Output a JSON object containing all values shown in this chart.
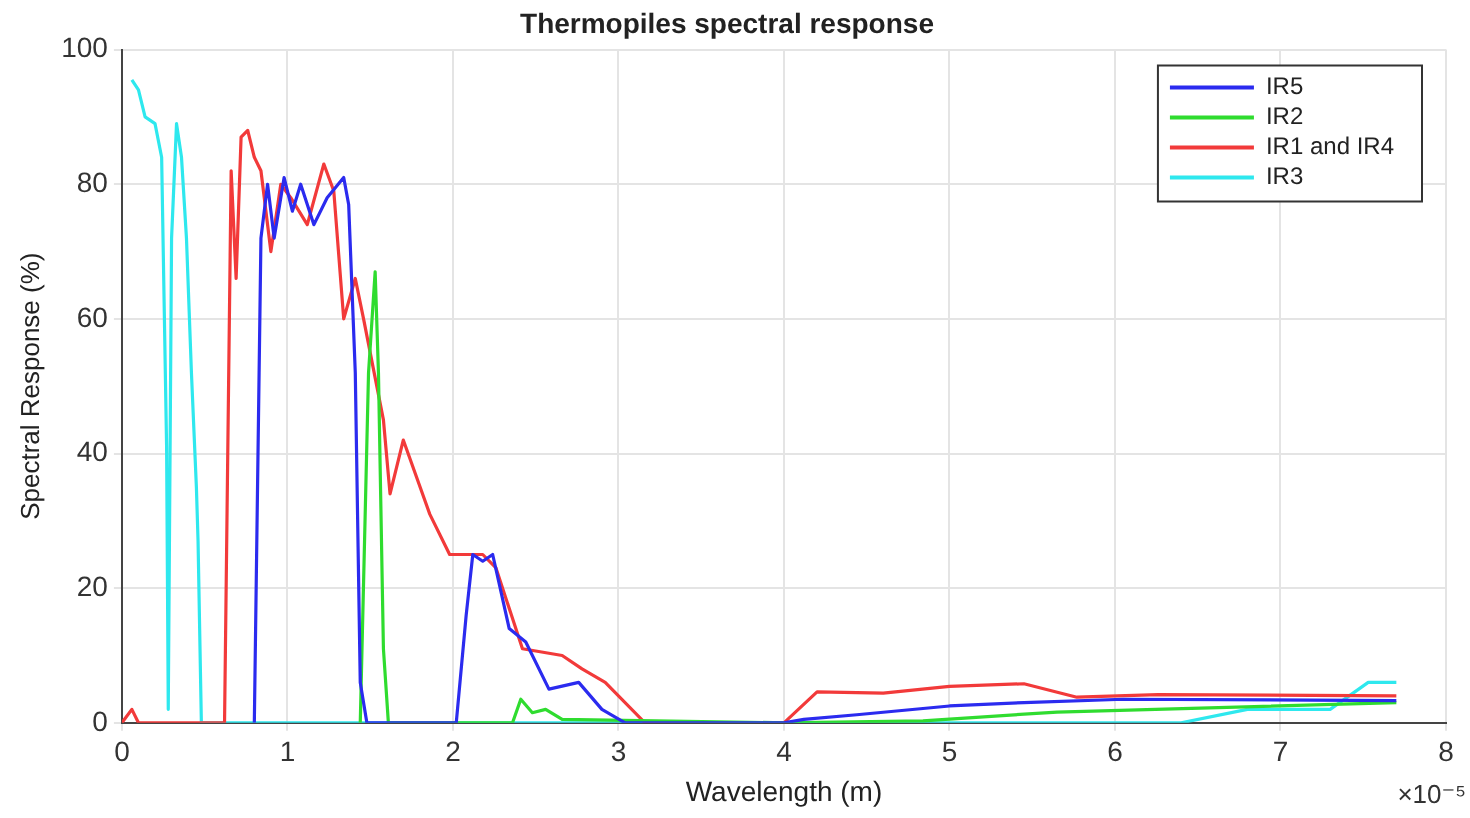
{
  "chart_data": {
    "type": "line",
    "title": "Thermopiles spectral response",
    "xlabel": "Wavelength (m)",
    "ylabel": "Spectral Response (%)",
    "xlim": [
      0,
      8
    ],
    "xticks": [
      0,
      1,
      2,
      3,
      4,
      5,
      6,
      7,
      8
    ],
    "ylim": [
      0,
      100
    ],
    "yticks": [
      0,
      20,
      40,
      60,
      80,
      100
    ],
    "grid": true,
    "legend": "top right",
    "marker": "none",
    "line_style": "solid",
    "annotations": [
      "×10⁻⁵"
    ],
    "series": [
      {
        "name": "IR5",
        "color": "#2b2bef",
        "x": [
          0.8,
          0.84,
          0.88,
          0.92,
          0.98,
          1.03,
          1.08,
          1.16,
          1.24,
          1.34,
          1.37,
          1.41,
          1.44,
          1.48,
          2.02,
          2.08,
          2.12,
          2.18,
          2.24,
          2.34,
          2.44,
          2.58,
          2.76,
          2.9,
          3.04,
          4.0,
          4.12,
          4.44,
          5.0,
          5.45,
          6.05,
          7.7
        ],
        "values": [
          0,
          72,
          80,
          72,
          81,
          76,
          80,
          74,
          78,
          81,
          77,
          52,
          6,
          0,
          0,
          16,
          25,
          24,
          25,
          14,
          12,
          5,
          6,
          2,
          0,
          0,
          0.5,
          1.2,
          2.5,
          3,
          3.5,
          3.3
        ]
      },
      {
        "name": "IR2",
        "color": "#2fdc2f",
        "x": [
          1.44,
          1.49,
          1.53,
          1.55,
          1.58,
          1.61,
          2.36,
          2.41,
          2.48,
          2.56,
          2.66,
          4.0,
          4.84,
          5.65,
          7.7
        ],
        "values": [
          0,
          52,
          67,
          52,
          11,
          0,
          0,
          3.5,
          1.5,
          2,
          0.5,
          0,
          0.3,
          1.6,
          3
        ]
      },
      {
        "name": "IR1 and IR4",
        "color": "#f23a3a",
        "x": [
          0,
          0.06,
          0.1,
          0.14,
          0.62,
          0.66,
          0.69,
          0.72,
          0.76,
          0.8,
          0.84,
          0.9,
          0.96,
          1.02,
          1.12,
          1.22,
          1.28,
          1.34,
          1.41,
          1.46,
          1.58,
          1.62,
          1.7,
          1.86,
          1.98,
          2.18,
          2.26,
          2.42,
          2.66,
          2.78,
          2.92,
          3.16,
          4.0,
          4.2,
          4.6,
          5.0,
          5.45,
          5.77,
          6.26,
          7.7
        ],
        "values": [
          0,
          2,
          0,
          0,
          0,
          82,
          66,
          87,
          88,
          84,
          82,
          70,
          80,
          78,
          74,
          83,
          79,
          60,
          66,
          60,
          45,
          34,
          42,
          31,
          25,
          25,
          23,
          11,
          10,
          8,
          6,
          0,
          0,
          4.6,
          4.4,
          5.4,
          5.8,
          3.8,
          4.2,
          4
        ]
      },
      {
        "name": "IR3",
        "color": "#2ee8ee",
        "x": [
          0.06,
          0.1,
          0.14,
          0.2,
          0.24,
          0.27,
          0.28,
          0.3,
          0.33,
          0.36,
          0.39,
          0.42,
          0.45,
          0.46,
          0.48,
          0.5,
          6.4,
          6.8,
          7.3,
          7.53,
          7.7
        ],
        "values": [
          95.5,
          94,
          90,
          89,
          84,
          41,
          2,
          72,
          89,
          84,
          72,
          52,
          35,
          27,
          0,
          0,
          0,
          2,
          2,
          6,
          6
        ]
      }
    ]
  }
}
